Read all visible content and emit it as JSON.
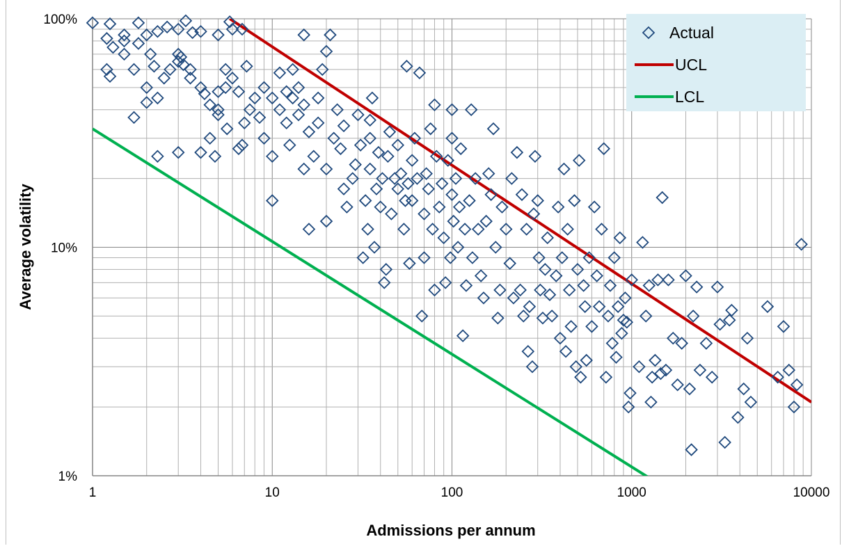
{
  "chart_data": {
    "type": "scatter",
    "title": "",
    "xlabel": "Admissions per annum",
    "ylabel": "Average volatility",
    "x_scale": "log",
    "y_scale": "log",
    "xlim": [
      1,
      10000
    ],
    "ylim": [
      0.01,
      1
    ],
    "x_ticks": [
      "1",
      "10",
      "100",
      "1000",
      "10000"
    ],
    "y_ticks": [
      "1%",
      "10%",
      "100%"
    ],
    "grid": true,
    "legend_position": "top-right",
    "colors": {
      "actual": "#1f497d",
      "ucl": "#c00000",
      "lcl": "#00b050",
      "legend_bg": "#dbeef4"
    },
    "series": [
      {
        "name": "Actual",
        "kind": "marker",
        "marker": "diamond-open",
        "points": [
          [
            1,
            0.96
          ],
          [
            1.25,
            0.95
          ],
          [
            1.2,
            0.82
          ],
          [
            1.3,
            0.75
          ],
          [
            1.5,
            0.85
          ],
          [
            1.5,
            0.8
          ],
          [
            1.8,
            0.96
          ],
          [
            1.8,
            0.78
          ],
          [
            2,
            0.85
          ],
          [
            2.1,
            0.7
          ],
          [
            2.3,
            0.88
          ],
          [
            2.6,
            0.92
          ],
          [
            3,
            0.9
          ],
          [
            3.3,
            0.98
          ],
          [
            3.6,
            0.87
          ],
          [
            4,
            0.88
          ],
          [
            5,
            0.85
          ],
          [
            5.8,
            0.97
          ],
          [
            6,
            0.9
          ],
          [
            6.8,
            0.9
          ],
          [
            1.2,
            0.6
          ],
          [
            1.25,
            0.56
          ],
          [
            1.5,
            0.7
          ],
          [
            1.7,
            0.6
          ],
          [
            1.7,
            0.37
          ],
          [
            2,
            0.5
          ],
          [
            2,
            0.43
          ],
          [
            2.2,
            0.62
          ],
          [
            2.3,
            0.45
          ],
          [
            2.5,
            0.55
          ],
          [
            2.7,
            0.6
          ],
          [
            3,
            0.7
          ],
          [
            3,
            0.65
          ],
          [
            3.1,
            0.68
          ],
          [
            3.2,
            0.63
          ],
          [
            3.5,
            0.55
          ],
          [
            3.5,
            0.6
          ],
          [
            4,
            0.5
          ],
          [
            4.2,
            0.47
          ],
          [
            4.5,
            0.42
          ],
          [
            4.5,
            0.3
          ],
          [
            5,
            0.48
          ],
          [
            5,
            0.4
          ],
          [
            5.5,
            0.5
          ],
          [
            5.5,
            0.6
          ],
          [
            6,
            0.55
          ],
          [
            6.5,
            0.48
          ],
          [
            6.8,
            0.28
          ],
          [
            7,
            0.35
          ],
          [
            7.2,
            0.62
          ],
          [
            3,
            0.26
          ],
          [
            2.3,
            0.25
          ],
          [
            4,
            0.26
          ],
          [
            4.8,
            0.25
          ],
          [
            5,
            0.38
          ],
          [
            5.6,
            0.33
          ],
          [
            6.5,
            0.27
          ],
          [
            7.5,
            0.4
          ],
          [
            8,
            0.45
          ],
          [
            8.5,
            0.37
          ],
          [
            9,
            0.5
          ],
          [
            9,
            0.3
          ],
          [
            10,
            0.45
          ],
          [
            10,
            0.25
          ],
          [
            10,
            0.16
          ],
          [
            11,
            0.4
          ],
          [
            11,
            0.58
          ],
          [
            12,
            0.48
          ],
          [
            12,
            0.35
          ],
          [
            12.5,
            0.28
          ],
          [
            13,
            0.45
          ],
          [
            13,
            0.6
          ],
          [
            14,
            0.5
          ],
          [
            14,
            0.38
          ],
          [
            15,
            0.42
          ],
          [
            15,
            0.22
          ],
          [
            15,
            0.85
          ],
          [
            16,
            0.32
          ],
          [
            16,
            0.12
          ],
          [
            17,
            0.25
          ],
          [
            18,
            0.35
          ],
          [
            18,
            0.45
          ],
          [
            19,
            0.6
          ],
          [
            20,
            0.22
          ],
          [
            20,
            0.13
          ],
          [
            20,
            0.72
          ],
          [
            21,
            0.85
          ],
          [
            22,
            0.3
          ],
          [
            23,
            0.4
          ],
          [
            24,
            0.27
          ],
          [
            25,
            0.18
          ],
          [
            25,
            0.34
          ],
          [
            26,
            0.15
          ],
          [
            28,
            0.2
          ],
          [
            29,
            0.23
          ],
          [
            30,
            0.38
          ],
          [
            31,
            0.28
          ],
          [
            32,
            0.09
          ],
          [
            33,
            0.16
          ],
          [
            34,
            0.12
          ],
          [
            35,
            0.3
          ],
          [
            35,
            0.22
          ],
          [
            36,
            0.45
          ],
          [
            37,
            0.1
          ],
          [
            38,
            0.18
          ],
          [
            39,
            0.26
          ],
          [
            40,
            0.15
          ],
          [
            41,
            0.2
          ],
          [
            42,
            0.07
          ],
          [
            43,
            0.08
          ],
          [
            44,
            0.25
          ],
          [
            45,
            0.32
          ],
          [
            46,
            0.14
          ],
          [
            48,
            0.2
          ],
          [
            50,
            0.18
          ],
          [
            50,
            0.28
          ],
          [
            52,
            0.21
          ],
          [
            54,
            0.12
          ],
          [
            55,
            0.16
          ],
          [
            56,
            0.62
          ],
          [
            57,
            0.19
          ],
          [
            58,
            0.085
          ],
          [
            60,
            0.24
          ],
          [
            60,
            0.16
          ],
          [
            62,
            0.3
          ],
          [
            64,
            0.2
          ],
          [
            66,
            0.58
          ],
          [
            68,
            0.05
          ],
          [
            70,
            0.09
          ],
          [
            70,
            0.14
          ],
          [
            72,
            0.21
          ],
          [
            74,
            0.18
          ],
          [
            76,
            0.33
          ],
          [
            78,
            0.12
          ],
          [
            80,
            0.42
          ],
          [
            80,
            0.065
          ],
          [
            82,
            0.25
          ],
          [
            85,
            0.15
          ],
          [
            88,
            0.19
          ],
          [
            90,
            0.11
          ],
          [
            92,
            0.07
          ],
          [
            95,
            0.24
          ],
          [
            98,
            0.09
          ],
          [
            100,
            0.4
          ],
          [
            100,
            0.3
          ],
          [
            100,
            0.17
          ],
          [
            102,
            0.13
          ],
          [
            105,
            0.2
          ],
          [
            108,
            0.1
          ],
          [
            110,
            0.15
          ],
          [
            112,
            0.27
          ],
          [
            115,
            0.041
          ],
          [
            118,
            0.12
          ],
          [
            120,
            0.068
          ],
          [
            125,
            0.16
          ],
          [
            128,
            0.4
          ],
          [
            130,
            0.09
          ],
          [
            135,
            0.2
          ],
          [
            140,
            0.12
          ],
          [
            145,
            0.075
          ],
          [
            150,
            0.06
          ],
          [
            155,
            0.13
          ],
          [
            160,
            0.21
          ],
          [
            165,
            0.17
          ],
          [
            170,
            0.33
          ],
          [
            175,
            0.1
          ],
          [
            180,
            0.049
          ],
          [
            185,
            0.065
          ],
          [
            190,
            0.15
          ],
          [
            200,
            0.12
          ],
          [
            210,
            0.085
          ],
          [
            215,
            0.2
          ],
          [
            220,
            0.06
          ],
          [
            230,
            0.26
          ],
          [
            240,
            0.065
          ],
          [
            245,
            0.17
          ],
          [
            250,
            0.05
          ],
          [
            260,
            0.12
          ],
          [
            265,
            0.035
          ],
          [
            270,
            0.055
          ],
          [
            280,
            0.03
          ],
          [
            285,
            0.14
          ],
          [
            290,
            0.25
          ],
          [
            300,
            0.16
          ],
          [
            305,
            0.09
          ],
          [
            310,
            0.065
          ],
          [
            320,
            0.049
          ],
          [
            330,
            0.08
          ],
          [
            340,
            0.11
          ],
          [
            350,
            0.062
          ],
          [
            360,
            0.05
          ],
          [
            380,
            0.075
          ],
          [
            390,
            0.15
          ],
          [
            400,
            0.04
          ],
          [
            410,
            0.09
          ],
          [
            420,
            0.22
          ],
          [
            430,
            0.035
          ],
          [
            440,
            0.12
          ],
          [
            450,
            0.065
          ],
          [
            460,
            0.045
          ],
          [
            480,
            0.16
          ],
          [
            490,
            0.03
          ],
          [
            500,
            0.08
          ],
          [
            510,
            0.24
          ],
          [
            520,
            0.027
          ],
          [
            540,
            0.068
          ],
          [
            550,
            0.055
          ],
          [
            560,
            0.032
          ],
          [
            580,
            0.09
          ],
          [
            600,
            0.045
          ],
          [
            620,
            0.15
          ],
          [
            640,
            0.075
          ],
          [
            660,
            0.055
          ],
          [
            680,
            0.12
          ],
          [
            700,
            0.27
          ],
          [
            720,
            0.027
          ],
          [
            740,
            0.05
          ],
          [
            760,
            0.068
          ],
          [
            780,
            0.038
          ],
          [
            800,
            0.09
          ],
          [
            820,
            0.033
          ],
          [
            840,
            0.055
          ],
          [
            860,
            0.11
          ],
          [
            880,
            0.042
          ],
          [
            900,
            0.048
          ],
          [
            920,
            0.06
          ],
          [
            940,
            0.047
          ],
          [
            960,
            0.02
          ],
          [
            980,
            0.023
          ],
          [
            1000,
            0.072
          ],
          [
            1100,
            0.03
          ],
          [
            1150,
            0.105
          ],
          [
            1200,
            0.05
          ],
          [
            1250,
            0.068
          ],
          [
            1280,
            0.021
          ],
          [
            1300,
            0.027
          ],
          [
            1350,
            0.032
          ],
          [
            1400,
            0.072
          ],
          [
            1450,
            0.028
          ],
          [
            1480,
            0.165
          ],
          [
            1550,
            0.029
          ],
          [
            1600,
            0.072
          ],
          [
            1700,
            0.04
          ],
          [
            1800,
            0.025
          ],
          [
            1900,
            0.038
          ],
          [
            2000,
            0.075
          ],
          [
            2100,
            0.024
          ],
          [
            2150,
            0.013
          ],
          [
            2200,
            0.05
          ],
          [
            2300,
            0.067
          ],
          [
            2400,
            0.029
          ],
          [
            2600,
            0.038
          ],
          [
            2800,
            0.027
          ],
          [
            3000,
            0.067
          ],
          [
            3100,
            0.046
          ],
          [
            3300,
            0.014
          ],
          [
            3500,
            0.048
          ],
          [
            3600,
            0.053
          ],
          [
            3900,
            0.018
          ],
          [
            4200,
            0.024
          ],
          [
            4400,
            0.04
          ],
          [
            4600,
            0.021
          ],
          [
            5700,
            0.055
          ],
          [
            6500,
            0.027
          ],
          [
            7000,
            0.045
          ],
          [
            7500,
            0.029
          ],
          [
            8000,
            0.02
          ],
          [
            8300,
            0.025
          ],
          [
            8800,
            0.103
          ],
          [
            35,
            0.36
          ]
        ]
      },
      {
        "name": "UCL",
        "kind": "line",
        "points": [
          [
            5.8,
            1.0
          ],
          [
            10000,
            0.021
          ]
        ]
      },
      {
        "name": "LCL",
        "kind": "line",
        "points": [
          [
            1,
            0.33
          ],
          [
            1330,
            0.0095
          ]
        ]
      }
    ]
  }
}
